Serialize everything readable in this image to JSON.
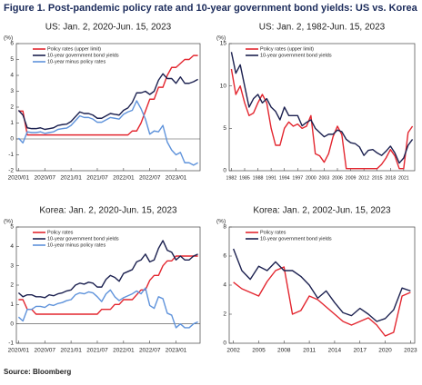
{
  "title": "Figure 1. Post-pandemic policy rate and 10-year government bond yields: US vs. Korea",
  "source": "Source: Bloomberg",
  "chart_data": [
    {
      "type": "line",
      "title": "US: Jan. 2, 2020-Jun. 15, 2023",
      "y_label": "(%)",
      "legend": "upper left",
      "categories": [
        "2020/01",
        null,
        null,
        null,
        null,
        null,
        "2020/07",
        null,
        null,
        null,
        null,
        null,
        "2021/01",
        null,
        null,
        null,
        null,
        null,
        "2021/07",
        null,
        null,
        null,
        null,
        null,
        "2022/01",
        null,
        null,
        null,
        null,
        null,
        "2022/07",
        null,
        null,
        null,
        null,
        null,
        "2023/01",
        null,
        null,
        null,
        null,
        null
      ],
      "series": [
        {
          "name": "Policy rates (upper limit)",
          "color": "#e3262f",
          "values": [
            1.75,
            1.75,
            0.25,
            0.25,
            0.25,
            0.25,
            0.25,
            0.25,
            0.25,
            0.25,
            0.25,
            0.25,
            0.25,
            0.25,
            0.25,
            0.25,
            0.25,
            0.25,
            0.25,
            0.25,
            0.25,
            0.25,
            0.25,
            0.25,
            0.25,
            0.25,
            0.5,
            0.5,
            1.0,
            1.75,
            2.5,
            2.5,
            3.25,
            3.25,
            4.0,
            4.5,
            4.5,
            4.75,
            5.0,
            5.0,
            5.25,
            5.25
          ]
        },
        {
          "name": "10-year government bond yields",
          "color": "#1c2150",
          "values": [
            1.8,
            1.5,
            0.7,
            0.65,
            0.65,
            0.7,
            0.6,
            0.65,
            0.7,
            0.85,
            0.9,
            0.93,
            1.1,
            1.4,
            1.7,
            1.6,
            1.6,
            1.5,
            1.3,
            1.3,
            1.45,
            1.6,
            1.55,
            1.5,
            1.8,
            1.95,
            2.3,
            2.9,
            2.9,
            3.0,
            2.8,
            3.0,
            3.7,
            4.1,
            3.8,
            3.8,
            3.5,
            3.9,
            3.5,
            3.5,
            3.6,
            3.75
          ]
        },
        {
          "name": "10-year minus policy rates",
          "color": "#5f93db",
          "values": [
            0.05,
            -0.25,
            0.45,
            0.4,
            0.4,
            0.45,
            0.35,
            0.4,
            0.45,
            0.6,
            0.65,
            0.68,
            0.85,
            1.15,
            1.45,
            1.35,
            1.35,
            1.25,
            1.05,
            1.05,
            1.2,
            1.35,
            1.3,
            1.25,
            1.55,
            1.7,
            1.8,
            2.4,
            1.9,
            1.25,
            0.3,
            0.5,
            0.45,
            0.85,
            -0.2,
            -0.7,
            -1.0,
            -0.85,
            -1.5,
            -1.5,
            -1.65,
            -1.5
          ]
        }
      ],
      "ylim": [
        -2,
        6
      ],
      "yticks": [
        -2,
        -1,
        0,
        1,
        2,
        3,
        4,
        5,
        6
      ]
    },
    {
      "type": "line",
      "title": "US: Jan. 2, 1982-Jun. 15, 2023",
      "y_label": "(%)",
      "legend": "upper left",
      "categories": [
        "1982",
        null,
        null,
        "1985",
        null,
        null,
        "1988",
        null,
        null,
        "1991",
        null,
        null,
        "1994",
        null,
        null,
        "1997",
        null,
        null,
        "2000",
        null,
        null,
        "2003",
        null,
        null,
        "2006",
        null,
        null,
        "2009",
        null,
        null,
        "2012",
        null,
        null,
        "2015",
        null,
        null,
        "2018",
        null,
        null,
        "2021",
        null,
        null
      ],
      "series": [
        {
          "name": "Policy rates (upper limit)",
          "color": "#e3262f",
          "values": [
            12,
            9,
            10,
            8,
            6.5,
            6.8,
            8,
            9,
            8,
            5,
            3,
            3,
            5,
            5.75,
            5.25,
            5.5,
            5,
            5.25,
            6.5,
            2,
            1.75,
            1,
            2,
            4,
            5.25,
            4.25,
            0.25,
            0.25,
            0.25,
            0.25,
            0.25,
            0.25,
            0.25,
            0.25,
            0.75,
            1.5,
            2.5,
            1.75,
            0.25,
            0.25,
            4.5,
            5.25
          ]
        },
        {
          "name": "10-year government bond yields",
          "color": "#1c2150",
          "values": [
            14,
            11.5,
            12.5,
            10,
            7.5,
            8.5,
            9,
            8,
            8.5,
            7.5,
            7,
            6,
            7.5,
            6.5,
            6.5,
            6.5,
            5.3,
            5.7,
            6,
            5,
            4.5,
            4.0,
            4.3,
            4.3,
            4.8,
            4.6,
            3.7,
            3.3,
            3.2,
            2.8,
            1.8,
            2.4,
            2.5,
            2.1,
            1.8,
            2.3,
            2.9,
            2.1,
            0.9,
            1.5,
            3.0,
            3.7
          ]
        }
      ],
      "ylim": [
        0,
        15
      ],
      "yticks": [
        0,
        5,
        10,
        15
      ]
    },
    {
      "type": "line",
      "title": "Korea: Jan. 2, 2020-Jun. 15, 2023",
      "y_label": "(%)",
      "legend": "upper left",
      "categories": [
        "2020/01",
        null,
        null,
        null,
        null,
        null,
        "2020/07",
        null,
        null,
        null,
        null,
        null,
        "2021/01",
        null,
        null,
        null,
        null,
        null,
        "2021/07",
        null,
        null,
        null,
        null,
        null,
        "2022/01",
        null,
        null,
        null,
        null,
        null,
        "2022/07",
        null,
        null,
        null,
        null,
        null,
        "2023/01",
        null,
        null,
        null,
        null,
        null
      ],
      "series": [
        {
          "name": "Policy rates",
          "color": "#e3262f",
          "values": [
            1.25,
            1.25,
            0.75,
            0.75,
            0.5,
            0.5,
            0.5,
            0.5,
            0.5,
            0.5,
            0.5,
            0.5,
            0.5,
            0.5,
            0.5,
            0.5,
            0.5,
            0.5,
            0.5,
            0.75,
            0.75,
            0.75,
            1.0,
            1.0,
            1.25,
            1.25,
            1.25,
            1.5,
            1.75,
            1.75,
            2.25,
            2.5,
            2.5,
            3.0,
            3.25,
            3.25,
            3.5,
            3.5,
            3.5,
            3.5,
            3.5,
            3.5
          ]
        },
        {
          "name": "10-year government bond yields",
          "color": "#1c2150",
          "values": [
            1.6,
            1.4,
            1.5,
            1.5,
            1.4,
            1.4,
            1.35,
            1.5,
            1.45,
            1.55,
            1.6,
            1.7,
            1.75,
            2.0,
            2.1,
            2.05,
            2.15,
            2.1,
            1.9,
            1.9,
            2.3,
            2.5,
            2.4,
            2.2,
            2.6,
            2.7,
            2.8,
            3.2,
            3.3,
            3.6,
            3.2,
            3.3,
            3.9,
            4.3,
            3.8,
            3.7,
            3.3,
            3.5,
            3.3,
            3.3,
            3.5,
            3.6
          ]
        },
        {
          "name": "10-year minus policy rates",
          "color": "#5f93db",
          "values": [
            0.35,
            0.15,
            0.75,
            0.75,
            0.9,
            0.9,
            0.85,
            1.0,
            0.95,
            1.05,
            1.1,
            1.2,
            1.25,
            1.5,
            1.6,
            1.55,
            1.65,
            1.6,
            1.4,
            1.15,
            1.55,
            1.75,
            1.4,
            1.2,
            1.35,
            1.45,
            1.55,
            1.7,
            1.55,
            1.85,
            0.95,
            0.8,
            1.4,
            1.3,
            0.55,
            0.45,
            -0.2,
            0.0,
            -0.2,
            -0.2,
            0.0,
            0.1
          ]
        }
      ],
      "ylim": [
        -1,
        5
      ],
      "yticks": [
        -1,
        0,
        1,
        2,
        3,
        4,
        5
      ]
    },
    {
      "type": "line",
      "title": "Korea: Jan. 2, 2002-Jun. 15, 2023",
      "y_label": "(%)",
      "legend": "upper left",
      "categories": [
        "2002",
        null,
        null,
        "2005",
        null,
        null,
        "2008",
        null,
        null,
        "2011",
        null,
        null,
        "2014",
        null,
        null,
        "2017",
        null,
        null,
        "2020",
        null,
        null,
        "2023"
      ],
      "series": [
        {
          "name": "Policy rates",
          "color": "#e3262f",
          "values": [
            4.2,
            3.75,
            3.5,
            3.25,
            4.25,
            5.0,
            5.25,
            2.0,
            2.25,
            3.25,
            3.0,
            2.5,
            2.0,
            1.5,
            1.25,
            1.5,
            1.75,
            1.25,
            0.5,
            0.75,
            3.25,
            3.5
          ]
        },
        {
          "name": "10-year government bond yields",
          "color": "#1c2150",
          "values": [
            6.5,
            5.0,
            4.4,
            5.3,
            5.0,
            5.6,
            5.0,
            5.0,
            4.6,
            4.0,
            3.1,
            3.6,
            2.8,
            2.1,
            1.9,
            2.4,
            2.0,
            1.5,
            1.7,
            2.3,
            3.8,
            3.6
          ]
        }
      ],
      "ylim": [
        0,
        8
      ],
      "yticks": [
        0,
        2,
        4,
        6,
        8
      ]
    }
  ]
}
